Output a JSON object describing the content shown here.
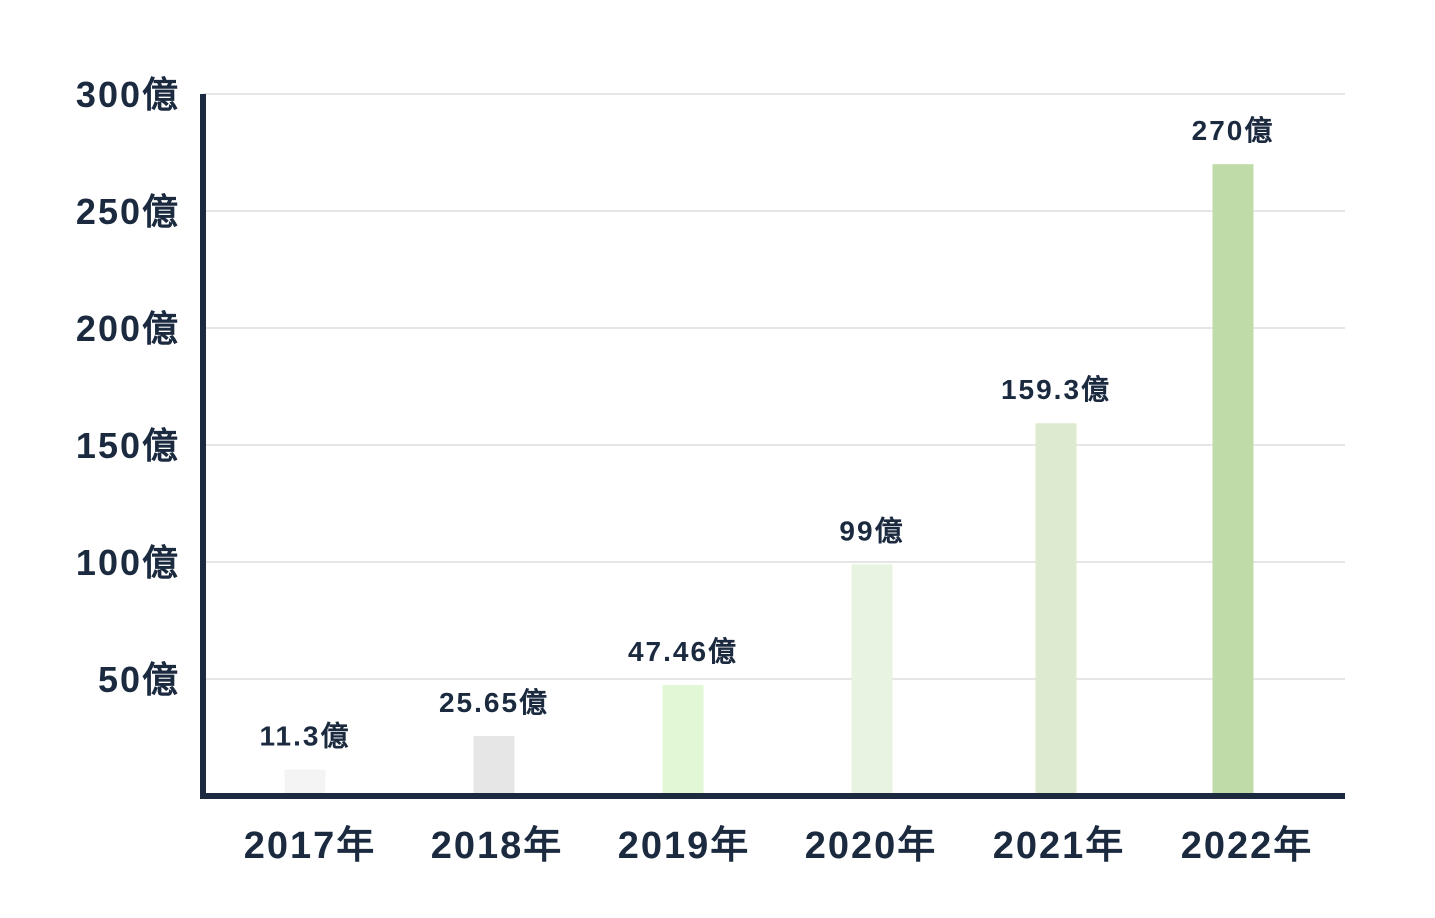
{
  "chart_data": {
    "type": "bar",
    "title": "",
    "xlabel": "",
    "ylabel": "",
    "categories": [
      "2017年",
      "2018年",
      "2019年",
      "2020年",
      "2021年",
      "2022年"
    ],
    "values": [
      11.3,
      25.65,
      47.46,
      99,
      159.3,
      270
    ],
    "data_labels": [
      "11.3億",
      "25.65億",
      "47.46億",
      "99億",
      "159.3億",
      "270億"
    ],
    "bar_colors": [
      "#f4f4f4",
      "#e6e6e6",
      "#e2f7d6",
      "#e8f3e1",
      "#dcebcf",
      "#bfdba7"
    ],
    "ylim": [
      0,
      300
    ],
    "yticks": [
      {
        "value": 50,
        "label": "50億"
      },
      {
        "value": 100,
        "label": "100億"
      },
      {
        "value": 150,
        "label": "150億"
      },
      {
        "value": 200,
        "label": "200億"
      },
      {
        "value": 250,
        "label": "250億"
      },
      {
        "value": 300,
        "label": "300億"
      }
    ],
    "grid": true,
    "legend": "none",
    "colors": {
      "axis": "#1b2a3f",
      "grid": "#dddddd",
      "text": "#1b2a3f"
    }
  }
}
